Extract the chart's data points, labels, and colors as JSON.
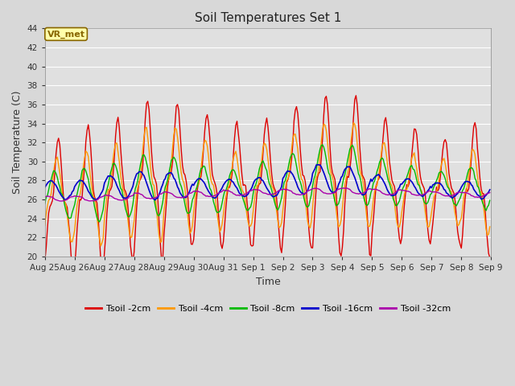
{
  "title": "Soil Temperatures Set 1",
  "xlabel": "Time",
  "ylabel": "Soil Temperature (C)",
  "ylim": [
    20,
    44
  ],
  "yticks": [
    20,
    22,
    24,
    26,
    28,
    30,
    32,
    34,
    36,
    38,
    40,
    42,
    44
  ],
  "fig_bg_color": "#d8d8d8",
  "plot_bg_color": "#e0e0e0",
  "series_colors": {
    "Tsoil -2cm": "#dd0000",
    "Tsoil -4cm": "#ff9900",
    "Tsoil -8cm": "#00bb00",
    "Tsoil -16cm": "#0000cc",
    "Tsoil -32cm": "#aa00aa"
  },
  "annotation_text": "VR_met",
  "annotation_bg": "#ffffaa",
  "annotation_border": "#886600",
  "x_tick_labels": [
    "Aug 25",
    "Aug 26",
    "Aug 27",
    "Aug 28",
    "Aug 29",
    "Aug 30",
    "Aug 31",
    "Sep 1",
    "Sep 2",
    "Sep 3",
    "Sep 4",
    "Sep 5",
    "Sep 6",
    "Sep 7",
    "Sep 8",
    "Sep 9"
  ],
  "grid_color": "#ffffff",
  "n_days": 15,
  "hours_per_day": 24
}
